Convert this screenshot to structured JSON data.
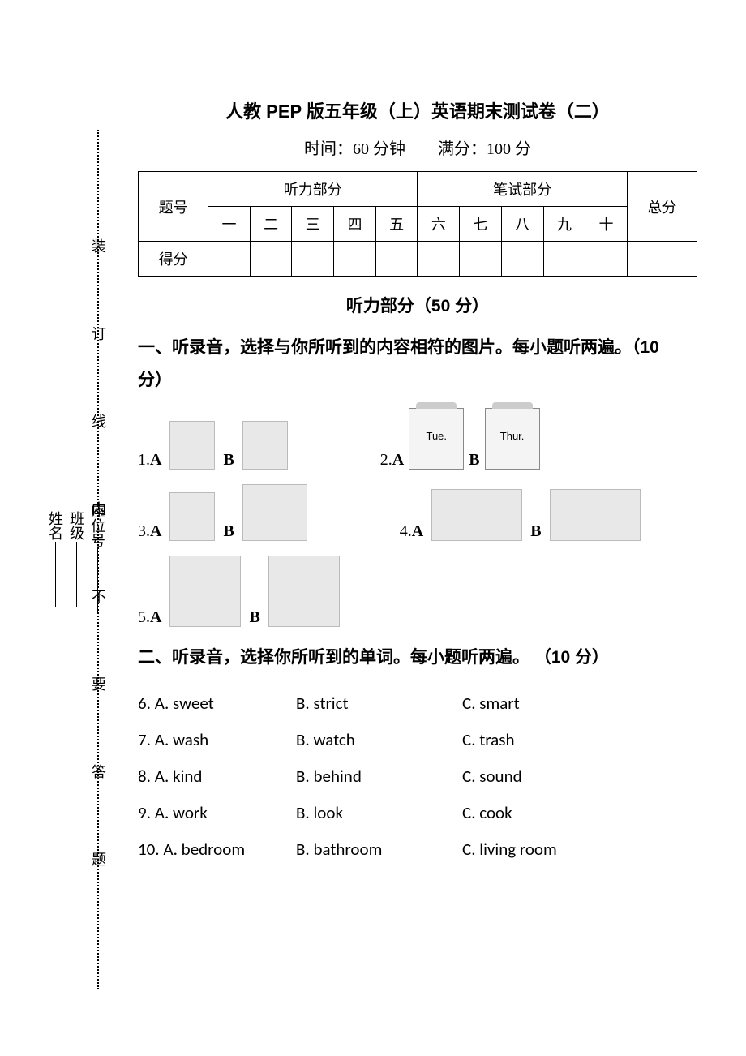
{
  "title": "人教 PEP 版五年级（上）英语期末测试卷（二）",
  "subtitle": "时间：60 分钟　　满分：100 分",
  "score_table": {
    "col_header_main": "题号",
    "group_listen": "听力部分",
    "group_write": "笔试部分",
    "total": "总分",
    "nums": [
      "一",
      "二",
      "三",
      "四",
      "五",
      "六",
      "七",
      "八",
      "九",
      "十"
    ],
    "row_score": "得分"
  },
  "listening_header": "听力部分（50 分）",
  "section1": {
    "instruction": "一、听录音，选择与你所听到的内容相符的图片。每小题听两遍。（10",
    "instruction_line2": "分）",
    "q1": {
      "num": "1.",
      "a": "A",
      "b": "B"
    },
    "q2": {
      "num": "2.",
      "a": "A",
      "b": "B",
      "cal_a": "Tue.",
      "cal_b": "Thur."
    },
    "q3": {
      "num": "3.",
      "a": "A",
      "b": "B"
    },
    "q4": {
      "num": "4.",
      "a": "A",
      "b": "B"
    },
    "q5": {
      "num": "5.",
      "a": " A",
      "b": "B"
    }
  },
  "section2": {
    "instruction": "二、听录音，选择你所听到的单词。每小题听两遍。 （10 分）",
    "rows": [
      {
        "n": "6.",
        "a": "A. sweet",
        "b": "B. strict",
        "c": "C. smart"
      },
      {
        "n": "7.",
        "a": "A. wash",
        "b": "B. watch",
        "c": "C. trash"
      },
      {
        "n": "8.",
        "a": "A. kind",
        "b": "B. behind",
        "c": "C. sound"
      },
      {
        "n": "9.",
        "a": "A. work",
        "b": "B. look",
        "c": "C. cook"
      },
      {
        "n": "10.",
        "a": "A. bedroom",
        "b": "B. bathroom",
        "c": "C. living room"
      }
    ]
  },
  "side": {
    "inner": "装　　订　　线　　内　　不　　要　　答　　题",
    "fields": [
      "姓名",
      "班级",
      "座位号"
    ]
  }
}
